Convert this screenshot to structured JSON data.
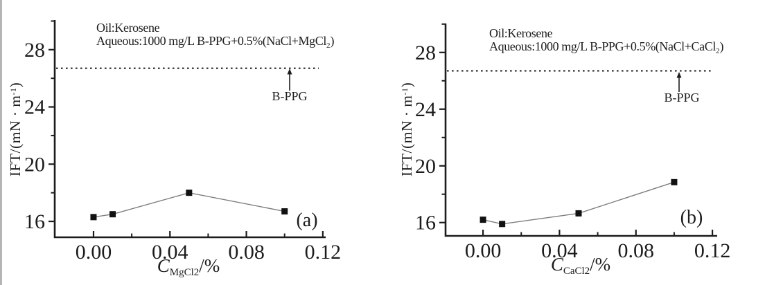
{
  "chart_data": [
    {
      "type": "line",
      "panel_label": "(a)",
      "x": [
        0.0,
        0.01,
        0.05,
        0.1
      ],
      "y": [
        16.3,
        16.5,
        18.0,
        16.7
      ],
      "marker": "filled-square",
      "line_color": "#7d7d7d",
      "marker_color": "#111111",
      "reference_line": {
        "value": 26.7,
        "style": "dotted",
        "label": "B-PPG"
      },
      "annotation_line1": "Oil:Kerosene",
      "annotation_line2_main": "Aqueous:1000 mg/L B-PPG+0.5%(NaCl+MgCl",
      "annotation_line2_sub": "2",
      "annotation_line2_end": ")",
      "xlabel_main": "C",
      "xlabel_sub": "MgCl2",
      "xlabel_suffix": "/%",
      "ylabel_main": "IFT/(mN · m",
      "ylabel_sup": "-1",
      "ylabel_suffix": ")",
      "x_ticks": [
        0.0,
        0.04,
        0.08,
        0.12
      ],
      "x_tick_labels": [
        "0.00",
        "0.04",
        "0.08",
        "0.12"
      ],
      "x_minor_ticks": [
        0.02,
        0.06,
        0.1
      ],
      "y_ticks": [
        16,
        20,
        24,
        28
      ],
      "y_tick_labels": [
        "16",
        "20",
        "24",
        "28"
      ],
      "y_minor_ticks": [
        18,
        22,
        26,
        30
      ],
      "xlim": [
        -0.02,
        0.12
      ],
      "ylim": [
        14.9,
        30.1
      ],
      "grid": false,
      "legend": "none"
    },
    {
      "type": "line",
      "panel_label": "(b)",
      "x": [
        0.0,
        0.01,
        0.05,
        0.1
      ],
      "y": [
        16.2,
        15.9,
        16.65,
        18.85
      ],
      "marker": "filled-square",
      "line_color": "#7d7d7d",
      "marker_color": "#111111",
      "reference_line": {
        "value": 26.7,
        "style": "dotted",
        "label": "B-PPG"
      },
      "annotation_line1": "Oil:Kerosene",
      "annotation_line2_main": "Aqueous:1000 mg/L B-PPG+0.5%(NaCl+CaCl",
      "annotation_line2_sub": "2",
      "annotation_line2_end": ")",
      "xlabel_main": "C",
      "xlabel_sub": "CaCl2",
      "xlabel_suffix": "/%",
      "ylabel_main": "IFT/(mN · m",
      "ylabel_sup": "-1",
      "ylabel_suffix": ")",
      "x_ticks": [
        0.0,
        0.04,
        0.08,
        0.12
      ],
      "x_tick_labels": [
        "0.00",
        "0.04",
        "0.08",
        "0.12"
      ],
      "x_minor_ticks": [
        0.02,
        0.06,
        0.1
      ],
      "y_ticks": [
        16,
        20,
        24,
        28
      ],
      "y_tick_labels": [
        "16",
        "20",
        "24",
        "28"
      ],
      "y_minor_ticks": [
        18,
        22,
        26,
        30
      ],
      "xlim": [
        -0.02,
        0.12
      ],
      "ylim": [
        14.9,
        30.1
      ],
      "grid": false,
      "legend": "none"
    }
  ]
}
